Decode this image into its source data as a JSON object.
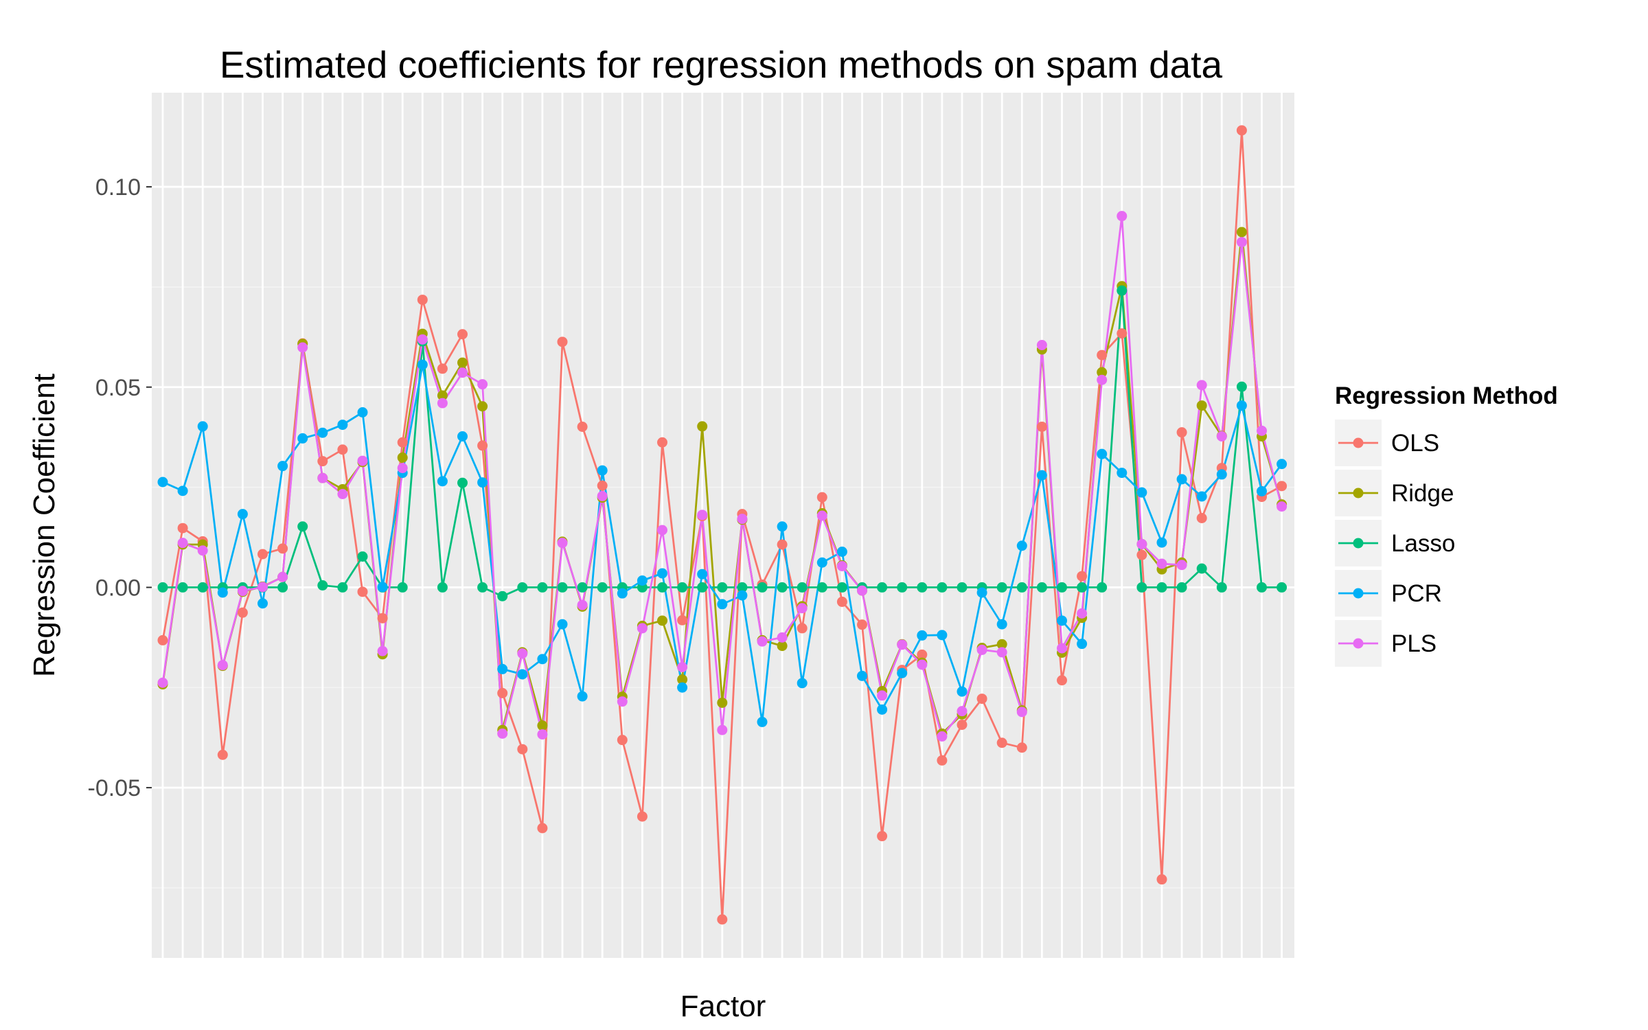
{
  "chart_data": {
    "type": "line",
    "title": "Estimated coefficients for regression methods on spam data",
    "xlabel": "Factor",
    "ylabel": "Regression Coefficient",
    "ylim": [
      -0.0925,
      0.1235
    ],
    "yticks": [
      {
        "value": -0.05,
        "label": "-0.05"
      },
      {
        "value": 0.0,
        "label": "0.00"
      },
      {
        "value": 0.05,
        "label": "0.05"
      },
      {
        "value": 0.1,
        "label": "0.10"
      }
    ],
    "x_count": 57,
    "grid": true,
    "legend": {
      "title": "Regression Method",
      "position": "right"
    },
    "series": [
      {
        "name": "OLS",
        "color": "#F8766D",
        "values": [
          -0.0132,
          0.0148,
          0.0115,
          -0.0418,
          -0.0063,
          0.0083,
          0.0097,
          0.0609,
          0.0315,
          0.0344,
          -0.0011,
          -0.0077,
          0.0362,
          0.0718,
          0.0546,
          0.0632,
          0.0354,
          -0.0264,
          -0.0404,
          -0.0601,
          0.0613,
          0.0401,
          0.0254,
          -0.0381,
          -0.0572,
          0.0362,
          -0.0082,
          0.0178,
          -0.0829,
          0.0183,
          0.0007,
          0.0107,
          -0.0102,
          0.0225,
          -0.0036,
          -0.0093,
          -0.0621,
          -0.0206,
          -0.0168,
          -0.0432,
          -0.0343,
          -0.0278,
          -0.0388,
          -0.04,
          0.0401,
          -0.0232,
          0.0028,
          0.058,
          0.0634,
          0.0081,
          -0.0729,
          0.0387,
          0.0173,
          0.0298,
          0.1141,
          0.0226,
          0.0253
        ]
      },
      {
        "name": "Ridge",
        "color": "#A3A500",
        "values": [
          -0.0242,
          0.0107,
          0.0107,
          -0.0196,
          -0.0011,
          0.0002,
          0.0026,
          0.0608,
          0.0273,
          0.0245,
          0.0313,
          -0.0167,
          0.0324,
          0.0633,
          0.0479,
          0.0561,
          0.0452,
          -0.0356,
          -0.0162,
          -0.0345,
          0.0114,
          -0.0048,
          0.0224,
          -0.0273,
          -0.0096,
          -0.0083,
          -0.023,
          0.0402,
          -0.0288,
          0.0169,
          -0.0132,
          -0.0146,
          -0.0047,
          0.0185,
          0.0055,
          -0.0008,
          -0.0259,
          -0.0142,
          -0.0188,
          -0.0365,
          -0.0317,
          -0.0151,
          -0.0142,
          -0.0307,
          0.0594,
          -0.0163,
          -0.0076,
          0.0537,
          0.0752,
          0.0108,
          0.0045,
          0.0062,
          0.0454,
          0.0378,
          0.0887,
          0.0377,
          0.0207
        ]
      },
      {
        "name": "Lasso",
        "color": "#00BF7D",
        "values": [
          0,
          0,
          0,
          0,
          0,
          0,
          0,
          0.0152,
          0.0005,
          0,
          0.0077,
          0,
          0,
          0.0614,
          0,
          0.0261,
          0,
          -0.0022,
          0,
          0,
          0,
          0,
          0,
          0,
          0,
          0,
          0,
          0,
          0,
          0,
          0,
          0,
          0,
          0,
          0,
          0,
          0,
          0,
          0,
          0,
          0,
          0,
          0,
          0,
          0,
          0,
          0,
          0,
          0.0741,
          0,
          0,
          0,
          0.0047,
          0,
          0.0501,
          0,
          0
        ]
      },
      {
        "name": "PCR",
        "color": "#00B0F6",
        "values": [
          0.0263,
          0.0241,
          0.0402,
          -0.0013,
          0.0183,
          -0.004,
          0.0303,
          0.0372,
          0.0386,
          0.0406,
          0.0437,
          0.0001,
          0.0286,
          0.0556,
          0.0265,
          0.0377,
          0.0262,
          -0.0204,
          -0.0217,
          -0.0179,
          -0.0092,
          -0.0272,
          0.0292,
          -0.0015,
          0.0017,
          0.0035,
          -0.025,
          0.0033,
          -0.0042,
          -0.002,
          -0.0336,
          0.0152,
          -0.0239,
          0.0062,
          0.0089,
          -0.0221,
          -0.0305,
          -0.0214,
          -0.012,
          -0.0119,
          -0.026,
          -0.0013,
          -0.0092,
          0.0104,
          0.028,
          -0.0083,
          -0.0141,
          0.0333,
          0.0286,
          0.0237,
          0.0112,
          0.027,
          0.0227,
          0.0282,
          0.0454,
          0.024,
          0.0308
        ]
      },
      {
        "name": "PLS",
        "color": "#E76BF3",
        "values": [
          -0.0238,
          0.0111,
          0.0092,
          -0.0194,
          -0.0009,
          0.0001,
          0.0026,
          0.0599,
          0.0273,
          0.0233,
          0.0316,
          -0.0159,
          0.0298,
          0.0619,
          0.046,
          0.0536,
          0.0507,
          -0.0365,
          -0.0165,
          -0.0367,
          0.0111,
          -0.0044,
          0.0228,
          -0.0285,
          -0.0102,
          0.0143,
          -0.0199,
          0.0181,
          -0.0356,
          0.0171,
          -0.0135,
          -0.0125,
          -0.0052,
          0.0179,
          0.0053,
          -0.0008,
          -0.027,
          -0.0143,
          -0.0193,
          -0.0372,
          -0.0309,
          -0.0156,
          -0.0162,
          -0.0311,
          0.0605,
          -0.0152,
          -0.0065,
          0.0518,
          0.0927,
          0.0108,
          0.0059,
          0.0056,
          0.0505,
          0.0377,
          0.0862,
          0.0391,
          0.0202
        ]
      }
    ]
  }
}
